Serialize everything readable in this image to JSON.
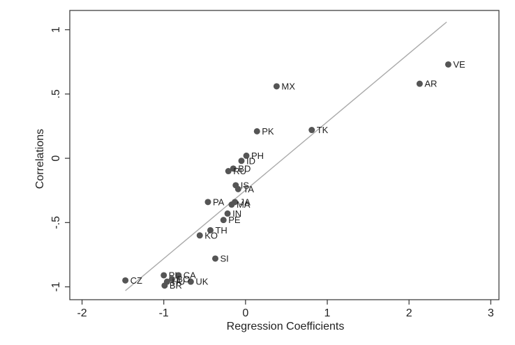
{
  "chart_data": {
    "type": "scatter",
    "title": "",
    "xlabel": "Regression Coefficients",
    "ylabel": "Correlations",
    "xlim": [
      -2.15,
      3.1
    ],
    "ylim": [
      -1.1,
      1.15
    ],
    "xticks": [
      -2,
      -1,
      0,
      1,
      2,
      3
    ],
    "xtick_labels": [
      "-2",
      "-1",
      "0",
      "1",
      "2",
      "3"
    ],
    "yticks": [
      -1,
      -0.5,
      0,
      0.5,
      1
    ],
    "ytick_labels": [
      "-1",
      "-.5",
      "0",
      ".5",
      "1"
    ],
    "grid": false,
    "legend": "none",
    "colors": {
      "points": "#555555",
      "fit_line": "#aaaaaa",
      "axes": "#333333"
    },
    "points": [
      {
        "label": "VE",
        "x": 2.48,
        "y": 0.73
      },
      {
        "label": "AR",
        "x": 2.13,
        "y": 0.58
      },
      {
        "label": "MX",
        "x": 0.38,
        "y": 0.56
      },
      {
        "label": "TK",
        "x": 0.81,
        "y": 0.22
      },
      {
        "label": "PK",
        "x": 0.14,
        "y": 0.21
      },
      {
        "label": "PH",
        "x": 0.01,
        "y": 0.02
      },
      {
        "label": "ID",
        "x": -0.05,
        "y": -0.02
      },
      {
        "label": "BD",
        "x": -0.15,
        "y": -0.08
      },
      {
        "label": "RU",
        "x": -0.21,
        "y": -0.1
      },
      {
        "label": "IS",
        "x": -0.12,
        "y": -0.21
      },
      {
        "label": "TA",
        "x": -0.09,
        "y": -0.24
      },
      {
        "label": "PA",
        "x": -0.46,
        "y": -0.34
      },
      {
        "label": "JA",
        "x": -0.13,
        "y": -0.34
      },
      {
        "label": "MA",
        "x": -0.17,
        "y": -0.36
      },
      {
        "label": "IN",
        "x": -0.22,
        "y": -0.43
      },
      {
        "label": "PE",
        "x": -0.27,
        "y": -0.48
      },
      {
        "label": "TH",
        "x": -0.43,
        "y": -0.56
      },
      {
        "label": "KO",
        "x": -0.56,
        "y": -0.6
      },
      {
        "label": "SI",
        "x": -0.37,
        "y": -0.78
      },
      {
        "label": "CZ",
        "x": -1.47,
        "y": -0.95
      },
      {
        "label": "CA",
        "x": -0.82,
        "y": -0.91
      },
      {
        "label": "UK",
        "x": -0.67,
        "y": -0.96
      },
      {
        "label": "PL",
        "x": -1.0,
        "y": -0.91
      },
      {
        "label": "BO",
        "x": -0.9,
        "y": -0.94
      },
      {
        "label": "HU",
        "x": -0.96,
        "y": -0.96
      },
      {
        "label": "BR",
        "x": -0.99,
        "y": -0.99
      }
    ],
    "fit_line": {
      "x": [
        -1.47,
        2.46
      ],
      "y": [
        -1.03,
        1.06
      ]
    }
  }
}
